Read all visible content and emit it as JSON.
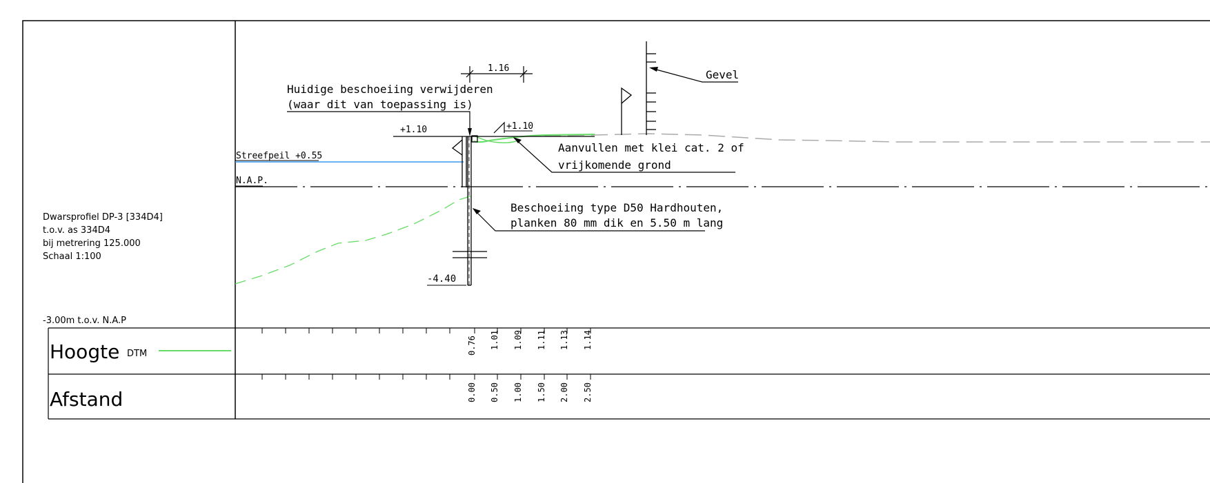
{
  "title_block": {
    "profile_name": "Dwarsprofiel DP-3 [334D4]",
    "reference_axis": "t.o.v. as 334D4",
    "chainage": "bij metrering 125.000",
    "scale": "Schaal 1:100",
    "datum_level": "-3.00m t.o.v. N.A.P"
  },
  "labels": {
    "dim_width": "1.16",
    "remove_line1": "Huidige beschoeiing verwijderen",
    "remove_line2": "(waar dit van toepassing is)",
    "top_level_left": "+1.10",
    "top_level_right": "+1.10",
    "target_level": "Streefpeil +0.55",
    "nap": "N.A.P.",
    "fill_line1": "Aanvullen met klei cat. 2 of",
    "fill_line2": "vrijkomende grond",
    "sheet_line1": "Beschoeiing type D50 Hardhouten,",
    "sheet_line2": "planken 80 mm dik en 5.50 m lang",
    "bottom_level": "-4.40",
    "facade": "Gevel"
  },
  "legend": {
    "height_label": "Hoogte",
    "height_sub": "DTM",
    "distance_label": "Afstand",
    "dtm_color": "#66dd66",
    "water_color": "#3399ee",
    "existing_color": "#aaaaaa"
  },
  "table": {
    "heights": [
      "0.76",
      "1.01",
      "1.09",
      "1.11",
      "1.13",
      "1.14"
    ],
    "distances": [
      "0.00",
      "0.50",
      "1.00",
      "1.50",
      "2.00",
      "2.50"
    ]
  }
}
